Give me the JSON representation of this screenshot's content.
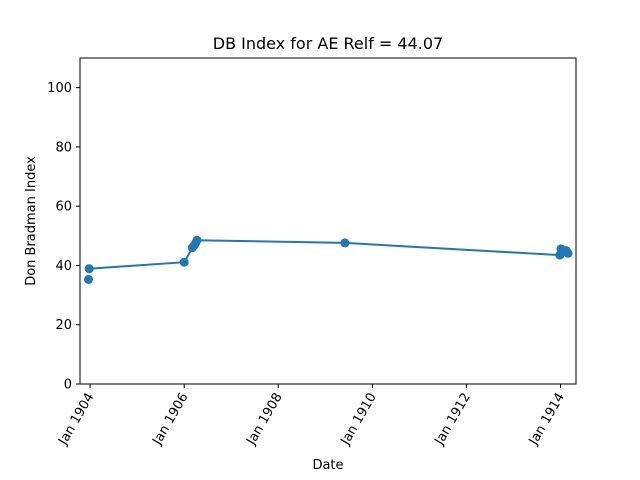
{
  "chart_data": {
    "type": "line",
    "title": "DB Index for AE Relf = 44.07",
    "xlabel": "Date",
    "ylabel": "Don Bradman Index",
    "ylim": [
      0,
      110
    ],
    "xlim": [
      "1903-10-15",
      "1914-05-01"
    ],
    "y_ticks": [
      0,
      20,
      40,
      60,
      80,
      100
    ],
    "x_ticks": [
      {
        "date": "1904-01-01",
        "label": "Jan 1904"
      },
      {
        "date": "1906-01-01",
        "label": "Jan 1906"
      },
      {
        "date": "1908-01-01",
        "label": "Jan 1908"
      },
      {
        "date": "1910-01-01",
        "label": "Jan 1910"
      },
      {
        "date": "1912-01-01",
        "label": "Jan 1912"
      },
      {
        "date": "1914-01-01",
        "label": "Jan 1914"
      }
    ],
    "grid": false,
    "series": [
      {
        "color": "#1f77b4",
        "line": [
          {
            "x": "1903-12-25",
            "y": 38.9
          },
          {
            "x": "1906-01-01",
            "y": 41.1
          },
          {
            "x": "1906-04-10",
            "y": 48.5
          },
          {
            "x": "1909-06-01",
            "y": 47.6
          },
          {
            "x": "1913-12-27",
            "y": 43.5
          }
        ],
        "points": [
          {
            "x": "1903-12-20",
            "y": 35.3
          },
          {
            "x": "1903-12-25",
            "y": 38.9
          },
          {
            "x": "1906-01-01",
            "y": 41.1
          },
          {
            "x": "1906-03-05",
            "y": 46.0
          },
          {
            "x": "1906-03-20",
            "y": 46.8
          },
          {
            "x": "1906-04-01",
            "y": 47.6
          },
          {
            "x": "1906-04-10",
            "y": 48.5
          },
          {
            "x": "1909-06-01",
            "y": 47.6
          },
          {
            "x": "1913-12-27",
            "y": 43.5
          },
          {
            "x": "1914-01-05",
            "y": 45.6
          },
          {
            "x": "1914-02-15",
            "y": 45.0
          },
          {
            "x": "1914-02-28",
            "y": 44.1
          }
        ]
      }
    ]
  }
}
